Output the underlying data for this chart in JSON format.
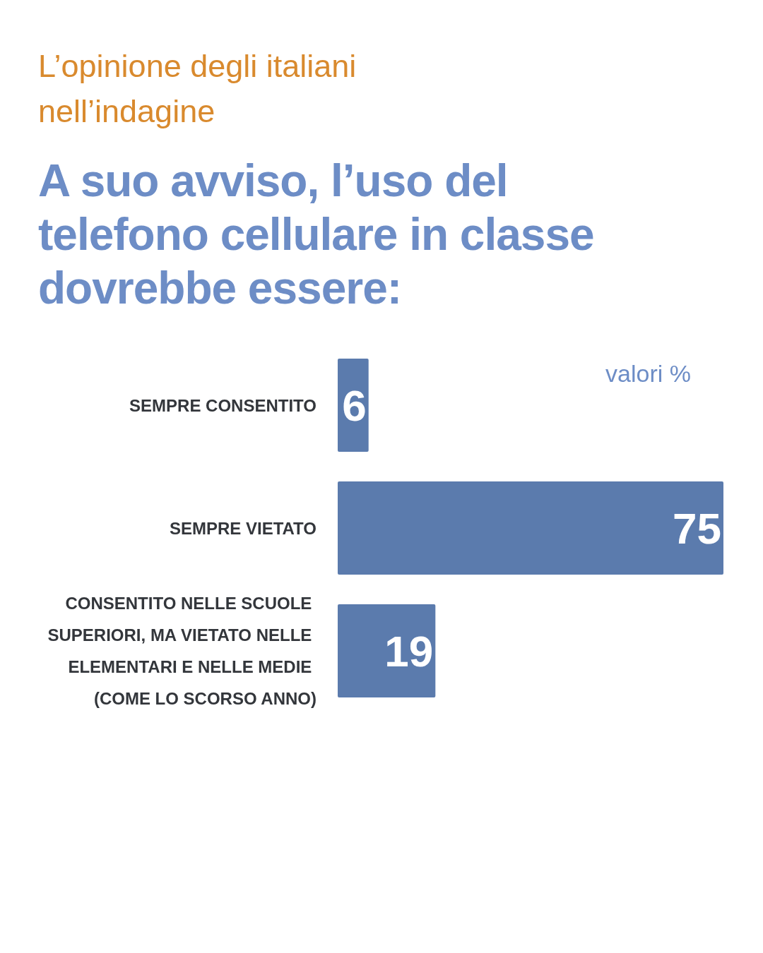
{
  "chart_data": {
    "type": "bar",
    "orientation": "horizontal",
    "subtitle": "L’opinione degli italiani nell’indagine",
    "title": "A suo avviso, l’uso del telefono cellulare in classe dovrebbe essere:",
    "categories": [
      "SEMPRE CONSENTITO",
      "SEMPRE VIETATO",
      "CONSENTITO NELLE SCUOLE SUPERIORI, MA VIETATO NELLE ELEMENTARI E NELLE MEDIE (COME LO SCORSO ANNO)"
    ],
    "values": [
      6,
      75,
      19
    ],
    "color": "#5b7bad",
    "data_labels": true,
    "annotations": [
      "valori %"
    ]
  }
}
